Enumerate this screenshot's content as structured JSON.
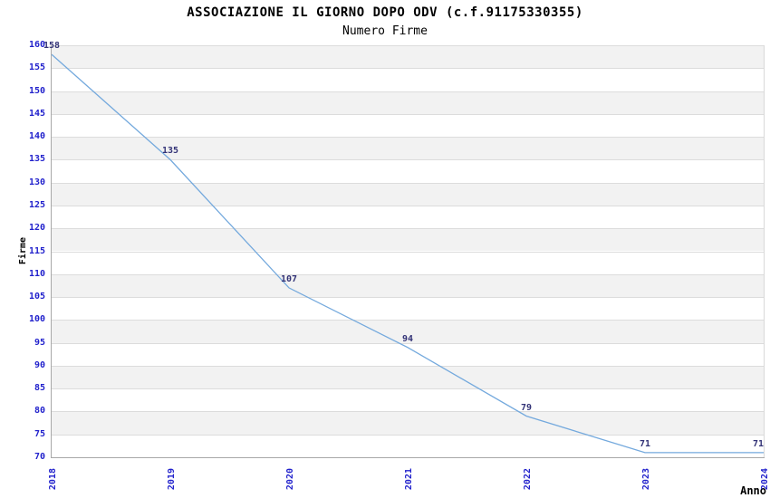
{
  "chart_data": {
    "type": "line",
    "title": "ASSOCIAZIONE IL GIORNO DOPO ODV (c.f.91175330355)",
    "subtitle": "Numero Firme",
    "xlabel": "Anno",
    "ylabel": "Firme",
    "categories": [
      "2018",
      "2019",
      "2020",
      "2021",
      "2022",
      "2023",
      "2024"
    ],
    "values": [
      158,
      135,
      107,
      94,
      79,
      71,
      71
    ],
    "point_labels": [
      "158",
      "135",
      "107",
      "94",
      "79",
      "71",
      "71"
    ],
    "ylim": [
      70,
      160
    ],
    "ytick_step": 5,
    "grid": true,
    "legend": "none",
    "band_fill": "alternating-horizontal",
    "colors": {
      "line": "#74a9dd",
      "tick_label": "#2222cc",
      "point_label": "#333377",
      "band": "#f2f2f2",
      "gridline": "#dcdcdc",
      "axis": "#a8a8a8",
      "title_text": "#000000",
      "background": "#ffffff"
    }
  }
}
